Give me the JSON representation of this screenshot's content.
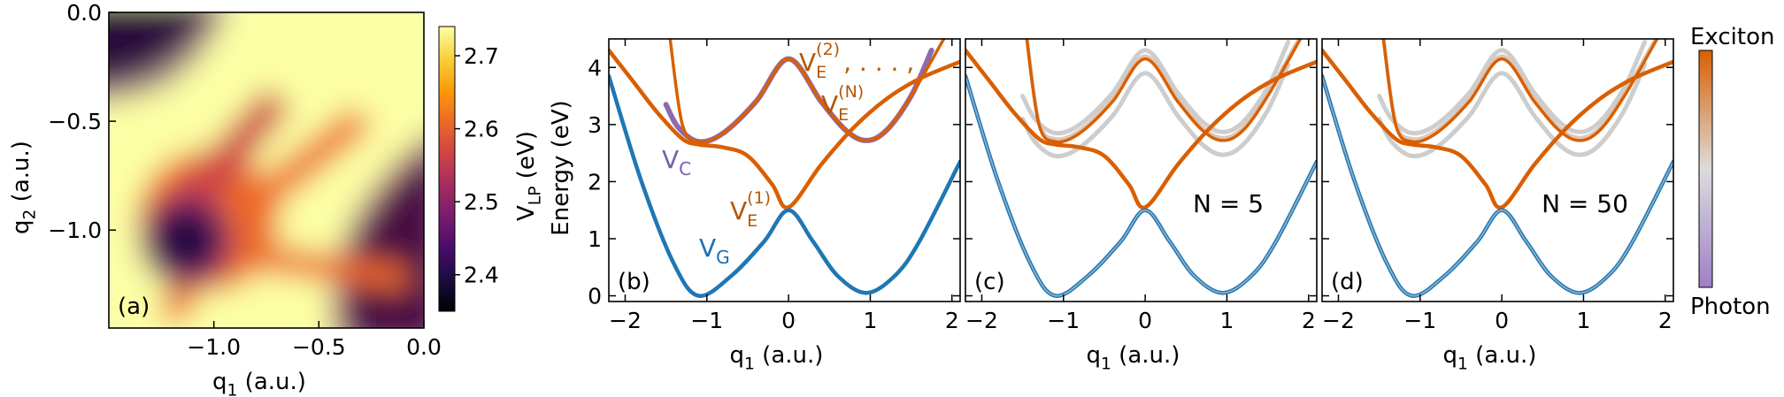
{
  "chart_data": [
    {
      "panel": "(a)",
      "type": "heatmap",
      "xlabel": "q",
      "xlabel_sub": "1",
      "xlabel_unit": " (a.u.)",
      "ylabel": "q",
      "ylabel_sub": "2",
      "ylabel_unit": " (a.u.)",
      "xlim": [
        -1.5,
        0.0
      ],
      "ylim": [
        -1.45,
        0.0
      ],
      "xticks": [
        -1.0,
        -0.5,
        0.0
      ],
      "xtick_labels": [
        "−1.0",
        "−0.5",
        "0.0"
      ],
      "yticks": [
        0.0,
        -0.5,
        -1.0
      ],
      "ytick_labels": [
        "0.0",
        "−0.5",
        "−1.0"
      ],
      "colorbar": {
        "label": "V",
        "label_sub": "LP",
        "label_unit": " (eV)",
        "range": [
          2.35,
          2.74
        ],
        "ticks": [
          2.7,
          2.6,
          2.5,
          2.4
        ],
        "tick_labels": [
          "2.7",
          "2.6",
          "2.5",
          "2.4"
        ],
        "colormap": "inferno",
        "stops": [
          "#000004",
          "#1b0c41",
          "#4a0c6b",
          "#781c6d",
          "#a52c60",
          "#cf4446",
          "#ed6925",
          "#fb9b06",
          "#f7d13d",
          "#fcffa4"
        ]
      },
      "features": {
        "minimum": {
          "q1": -1.07,
          "q2": -1.07,
          "value": 2.35
        },
        "saddle_region": {
          "q1": -0.85,
          "q2": -0.85,
          "value": 2.55
        },
        "dark_corners": "top-left and bottom-right",
        "bright_regions": "upper-right lobe and lower-left lobe"
      }
    },
    {
      "panel": "(b)",
      "type": "line",
      "xlabel": "q",
      "xlabel_sub": "1",
      "xlabel_unit": " (a.u.)",
      "ylabel": "Energy (eV)",
      "xlim": [
        -2.2,
        2.1
      ],
      "ylim": [
        -0.1,
        4.5
      ],
      "xticks": [
        -2,
        -1,
        0,
        1,
        2
      ],
      "xtick_labels": [
        "−2",
        "−1",
        "0",
        "1",
        "2"
      ],
      "yticks": [
        0,
        1,
        2,
        3,
        4
      ],
      "ytick_labels": [
        "0",
        "1",
        "2",
        "3",
        "4"
      ],
      "series": [
        {
          "label": "V_G",
          "color": "#1f77b4",
          "x": [
            -2.2,
            -1.8,
            -1.4,
            -1.1,
            -0.7,
            -0.3,
            0.0,
            0.3,
            0.6,
            0.95,
            1.3,
            1.6,
            2.1
          ],
          "y": [
            3.85,
            2.0,
            0.55,
            0.0,
            0.35,
            0.95,
            1.5,
            0.95,
            0.35,
            0.05,
            0.35,
            0.95,
            2.35
          ]
        },
        {
          "label": "V_C",
          "color": "#8c6bb1",
          "x": [
            -1.5,
            -1.35,
            -1.1,
            -0.8,
            -0.4,
            0.0,
            0.4,
            0.7,
            0.95,
            1.2,
            1.5,
            1.75
          ],
          "y": [
            3.35,
            2.95,
            2.7,
            2.85,
            3.4,
            4.15,
            3.4,
            2.9,
            2.72,
            2.9,
            3.5,
            4.3
          ]
        },
        {
          "label": "V_E^(1)",
          "color": "#d95f02",
          "x": [
            -2.2,
            -1.9,
            -1.6,
            -1.3,
            -1.1,
            -0.8,
            -0.5,
            -0.2,
            0.0,
            0.4,
            0.8,
            1.2,
            1.6,
            2.1
          ],
          "y": [
            4.3,
            3.75,
            3.2,
            2.75,
            2.65,
            2.6,
            2.45,
            1.95,
            1.55,
            2.3,
            2.95,
            3.45,
            3.8,
            4.1
          ]
        },
        {
          "label": "V_E^(2)",
          "color": "#d95f02",
          "x": [
            -1.45,
            -1.3,
            -1.1,
            -0.8,
            -0.4,
            0.0,
            0.4,
            0.7,
            0.95,
            1.2,
            1.5,
            1.9
          ],
          "y": [
            4.5,
            3.0,
            2.7,
            2.85,
            3.4,
            4.15,
            3.4,
            2.9,
            2.72,
            2.9,
            3.5,
            4.5
          ]
        }
      ],
      "annotations": [
        {
          "text": "V",
          "sub": "C",
          "color": "#7b5ea7"
        },
        {
          "text": "V",
          "sub": "G",
          "color": "#1f6fb0"
        },
        {
          "text": "V",
          "sub": "E",
          "sup": "(1)",
          "color": "#b35806"
        },
        {
          "text": "V",
          "sub": "E",
          "sup": "(2)",
          "suffix": ", . . . ,",
          "color": "#b35806"
        },
        {
          "text": "V",
          "sub": "E",
          "sup": "(N)",
          "color": "#b35806"
        }
      ]
    },
    {
      "panel": "(c)",
      "type": "line",
      "label": "N = 5",
      "xlabel": "q",
      "xlabel_sub": "1",
      "xlabel_unit": " (a.u.)",
      "xlim": [
        -2.2,
        2.1
      ],
      "ylim": [
        -0.1,
        4.5
      ],
      "xticks": [
        -2,
        -1,
        0,
        1,
        2
      ],
      "xtick_labels": [
        "−2",
        "−1",
        "0",
        "1",
        "2"
      ],
      "yticks": [
        0,
        1,
        2,
        3,
        4
      ],
      "N": 5
    },
    {
      "panel": "(d)",
      "type": "line",
      "label": "N = 50",
      "xlabel": "q",
      "xlabel_sub": "1",
      "xlabel_unit": " (a.u.)",
      "xlim": [
        -2.2,
        2.1
      ],
      "ylim": [
        -0.1,
        4.5
      ],
      "xticks": [
        -2,
        -1,
        0,
        1,
        2
      ],
      "xtick_labels": [
        "−2",
        "−1",
        "0",
        "1",
        "2"
      ],
      "yticks": [
        0,
        1,
        2,
        3,
        4
      ],
      "N": 50
    }
  ],
  "color_legend": {
    "top_label": "Exciton",
    "bottom_label": "Photon",
    "exciton_color": "#d95f02",
    "photon_color": "#8c6bb1",
    "mid_color": "#d9d9d9"
  }
}
